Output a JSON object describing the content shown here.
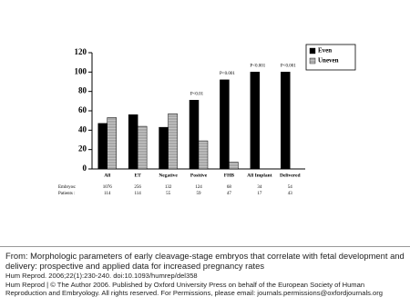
{
  "chart_data": {
    "type": "bar",
    "categories": [
      "All",
      "ET",
      "Negative",
      "Positive",
      "FHB",
      "All Implant",
      "Delivered"
    ],
    "series": [
      {
        "name": "Even",
        "color": "#000000",
        "values": [
          47,
          56,
          43,
          71,
          92,
          100,
          100
        ]
      },
      {
        "name": "Uneven",
        "color": "#999999",
        "values": [
          53,
          44,
          57,
          29,
          7,
          0,
          0
        ]
      }
    ],
    "ylim": [
      0,
      120
    ],
    "yticks": [
      0,
      20,
      40,
      60,
      80,
      100,
      120
    ],
    "grid": false,
    "legend": "top-right",
    "annotations": [
      {
        "category": "Positive",
        "text": "P<0.01"
      },
      {
        "category": "FHB",
        "text": "P<0.001"
      },
      {
        "category": "All Implant",
        "text": "P<0.001"
      },
      {
        "category": "Delivered",
        "text": "P<0.001"
      }
    ],
    "counts": [
      {
        "label": "Embryos:",
        "values": [
          1076,
          256,
          132,
          124,
          68,
          34,
          54
        ]
      },
      {
        "label": "Patients :",
        "values": [
          114,
          114,
          55,
          59,
          47,
          17,
          43
        ]
      }
    ]
  },
  "caption": {
    "source": "From: Morphologic parameters of early cleavage-stage embryos that correlate with fetal development and delivery: prospective and applied data for increased pregnancy rates",
    "citation": "Hum Reprod. 2006;22(1):230-240. doi:10.1093/humrep/del358",
    "rights": "Hum Reprod | © The Author 2006. Published by Oxford University Press on behalf of the European Society of Human Reproduction and Embryology. All rights reserved. For Permissions, please email: journals.permissions@oxfordjournals.org"
  }
}
